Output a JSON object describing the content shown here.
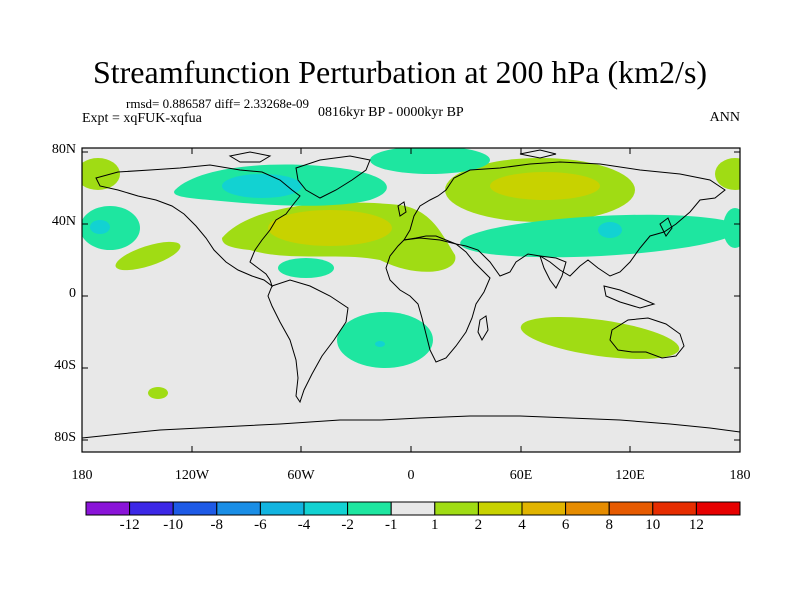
{
  "title": "Streamfunction Perturbation at 200 hPa (km2/s)",
  "stats": "rmsd= 0.886587 diff= 2.33268e-09",
  "experiment": "Expt = xqFUK-xqfua",
  "period": "0816kyr BP - 0000kyr BP",
  "season": "ANN",
  "y_ticks": [
    "80N",
    "40N",
    "0",
    "40S",
    "80S"
  ],
  "x_ticks": [
    "180",
    "120W",
    "60W",
    "0",
    "60E",
    "120E",
    "180"
  ],
  "colorbar": {
    "labels": [
      "-12",
      "-10",
      "-8",
      "-6",
      "-4",
      "-2",
      "-1",
      "1",
      "2",
      "4",
      "6",
      "8",
      "10",
      "12"
    ],
    "colors": [
      "#8a14d8",
      "#3c28e6",
      "#1e5ae6",
      "#1a8ee6",
      "#12b4e0",
      "#12d2d2",
      "#1ee6a0",
      "#e8e8e8",
      "#a0dc14",
      "#c8d200",
      "#e1b400",
      "#e68c00",
      "#e65a00",
      "#e62d00",
      "#e60000"
    ]
  }
}
